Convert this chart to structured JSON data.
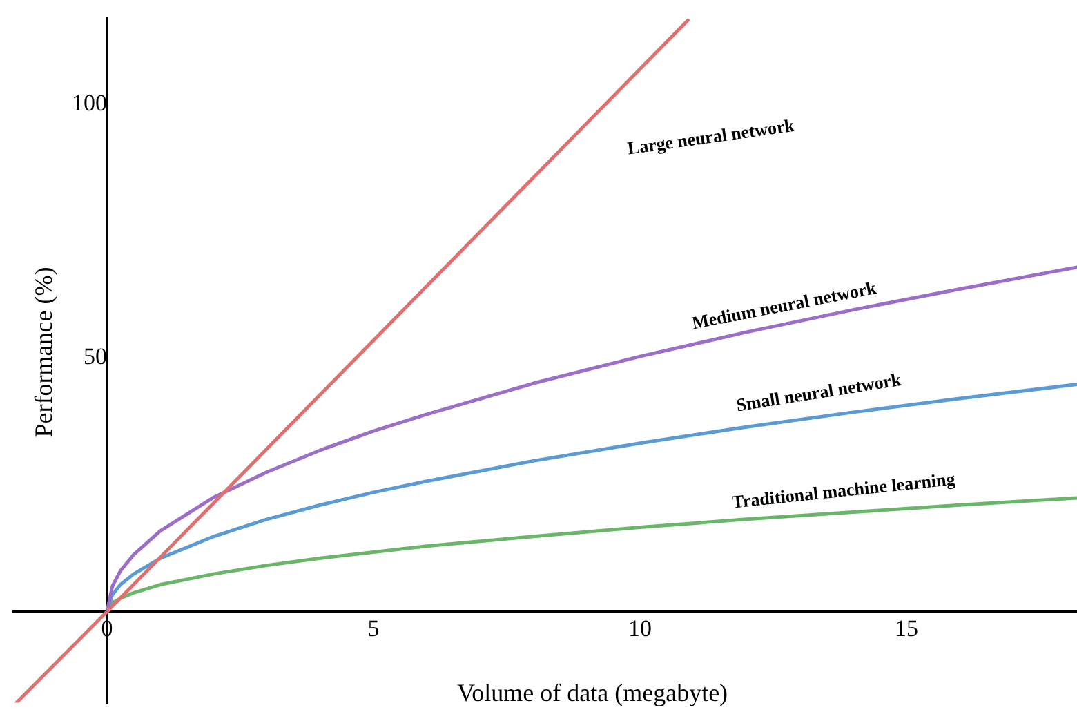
{
  "chart_data": {
    "type": "line",
    "xlabel": "Volume of data (megabyte)",
    "ylabel": "Performance (%)",
    "xlim": [
      -1.75,
      18.2
    ],
    "ylim": [
      -18,
      117
    ],
    "xticks": [
      0,
      5,
      10,
      15
    ],
    "yticks": [
      50,
      100
    ],
    "grid": false,
    "legend": false,
    "marker": "none",
    "line_style": "solid",
    "series": [
      {
        "name": "Large neural network",
        "color": "#e07070",
        "x": [
          -1.7,
          0,
          10.9
        ],
        "values": [
          -18,
          0,
          116.6
        ]
      },
      {
        "name": "Medium neural network",
        "color": "#9b6fc9",
        "x": [
          0,
          0.1,
          0.25,
          0.5,
          1,
          2,
          3,
          4,
          5,
          6,
          8,
          10,
          12,
          14,
          16,
          18.2
        ],
        "values": [
          0,
          5.0,
          8.0,
          11.2,
          15.9,
          22.5,
          27.5,
          31.8,
          35.6,
          38.9,
          45.0,
          50.3,
          55.1,
          59.5,
          63.6,
          67.9
        ]
      },
      {
        "name": "Small neural network",
        "color": "#5b9bd5",
        "x": [
          0,
          0.1,
          0.25,
          0.5,
          1,
          2,
          3,
          4,
          5,
          6,
          8,
          10,
          12,
          14,
          16,
          18.2
        ],
        "values": [
          0,
          3.3,
          5.3,
          7.4,
          10.5,
          14.8,
          18.2,
          21.0,
          23.5,
          25.7,
          29.7,
          33.2,
          36.4,
          39.3,
          42.0,
          44.8
        ]
      },
      {
        "name": "Traditional machine learning",
        "color": "#6ab56a",
        "x": [
          0,
          0.1,
          0.25,
          0.5,
          1,
          2,
          3,
          4,
          5,
          6,
          8,
          10,
          12,
          14,
          16,
          18.2
        ],
        "values": [
          0,
          1.7,
          2.6,
          3.7,
          5.3,
          7.4,
          9.1,
          10.5,
          11.7,
          12.9,
          14.8,
          16.6,
          18.2,
          19.6,
          21.0,
          22.4
        ]
      }
    ]
  }
}
